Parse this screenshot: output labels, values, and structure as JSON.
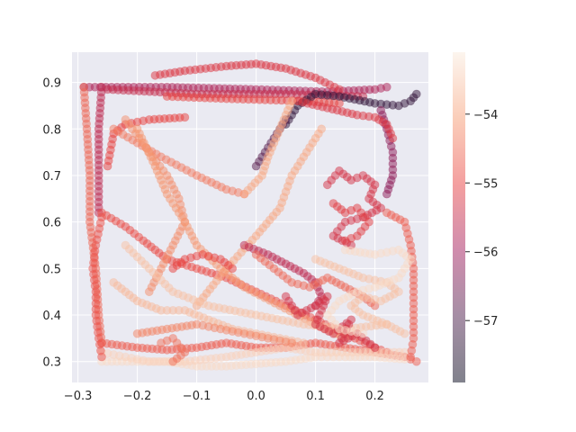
{
  "chart_data": {
    "type": "scatter",
    "title": "",
    "xlabel": "",
    "ylabel": "",
    "xlim": [
      -0.31,
      0.29
    ],
    "ylim": [
      0.255,
      0.965
    ],
    "x_ticks": [
      -0.3,
      -0.2,
      -0.1,
      0.0,
      0.1,
      0.2
    ],
    "x_tick_labels": [
      "−0.3",
      "−0.2",
      "−0.1",
      "0.0",
      "0.1",
      "0.2"
    ],
    "y_ticks": [
      0.3,
      0.4,
      0.5,
      0.6,
      0.7,
      0.8,
      0.9
    ],
    "y_tick_labels": [
      "0.3",
      "0.4",
      "0.5",
      "0.6",
      "0.7",
      "0.8",
      "0.9"
    ],
    "grid": true,
    "colorbar": {
      "range": [
        -57.9,
        -53.1
      ],
      "ticks": [
        -57,
        -56,
        -55,
        -54
      ],
      "tick_labels": [
        "−57",
        "−56",
        "−55",
        "−54"
      ],
      "colors": [
        "#03051a",
        "#4c1d4b",
        "#a11a5b",
        "#e83f3f",
        "#f69c73",
        "#faebdd"
      ]
    },
    "marker_alpha": 0.5,
    "paths": [
      {
        "color_value": -55.8,
        "points": [
          [
            -0.29,
            0.89
          ],
          [
            -0.15,
            0.89
          ],
          [
            0.0,
            0.885
          ],
          [
            0.12,
            0.88
          ],
          [
            0.2,
            0.885
          ],
          [
            0.22,
            0.89
          ]
        ]
      },
      {
        "color_value": -55.5,
        "points": [
          [
            -0.25,
            0.885
          ],
          [
            -0.1,
            0.875
          ],
          [
            0.05,
            0.875
          ],
          [
            0.18,
            0.87
          ]
        ]
      },
      {
        "color_value": -55.0,
        "points": [
          [
            -0.15,
            0.87
          ],
          [
            -0.05,
            0.865
          ],
          [
            0.08,
            0.86
          ],
          [
            0.14,
            0.855
          ]
        ]
      },
      {
        "color_value": -55.2,
        "points": [
          [
            -0.17,
            0.915
          ],
          [
            -0.12,
            0.925
          ],
          [
            -0.05,
            0.935
          ],
          [
            0.0,
            0.94
          ],
          [
            0.05,
            0.93
          ],
          [
            0.1,
            0.91
          ],
          [
            0.14,
            0.885
          ]
        ]
      },
      {
        "color_value": -57.3,
        "points": [
          [
            0.05,
            0.81
          ],
          [
            0.07,
            0.85
          ],
          [
            0.1,
            0.875
          ],
          [
            0.14,
            0.87
          ],
          [
            0.2,
            0.855
          ],
          [
            0.24,
            0.85
          ],
          [
            0.26,
            0.86
          ],
          [
            0.27,
            0.875
          ]
        ]
      },
      {
        "color_value": -56.8,
        "points": [
          [
            0.0,
            0.72
          ],
          [
            0.02,
            0.76
          ],
          [
            0.04,
            0.8
          ],
          [
            0.05,
            0.82
          ]
        ]
      },
      {
        "color_value": -56.2,
        "points": [
          [
            0.21,
            0.84
          ],
          [
            0.22,
            0.8
          ],
          [
            0.23,
            0.75
          ],
          [
            0.23,
            0.7
          ],
          [
            0.22,
            0.66
          ]
        ]
      },
      {
        "color_value": -55.2,
        "points": [
          [
            0.07,
            0.86
          ],
          [
            0.12,
            0.845
          ],
          [
            0.17,
            0.83
          ],
          [
            0.2,
            0.825
          ],
          [
            0.22,
            0.81
          ],
          [
            0.23,
            0.78
          ]
        ]
      },
      {
        "color_value": -55.6,
        "points": [
          [
            -0.26,
            0.89
          ],
          [
            -0.265,
            0.8
          ],
          [
            -0.265,
            0.7
          ],
          [
            -0.265,
            0.62
          ]
        ]
      },
      {
        "color_value": -54.9,
        "points": [
          [
            -0.26,
            0.62
          ],
          [
            -0.22,
            0.59
          ],
          [
            -0.19,
            0.56
          ],
          [
            -0.15,
            0.52
          ],
          [
            -0.1,
            0.5
          ],
          [
            -0.05,
            0.48
          ],
          [
            0.0,
            0.45
          ],
          [
            0.05,
            0.42
          ],
          [
            0.1,
            0.39
          ],
          [
            0.15,
            0.36
          ],
          [
            0.2,
            0.33
          ],
          [
            0.22,
            0.32
          ]
        ]
      },
      {
        "color_value": -55.0,
        "points": [
          [
            -0.25,
            0.72
          ],
          [
            -0.24,
            0.79
          ],
          [
            -0.22,
            0.81
          ],
          [
            -0.18,
            0.82
          ],
          [
            -0.12,
            0.825
          ]
        ]
      },
      {
        "color_value": -54.4,
        "points": [
          [
            -0.24,
            0.8
          ],
          [
            -0.2,
            0.77
          ],
          [
            -0.16,
            0.74
          ],
          [
            -0.1,
            0.7
          ],
          [
            -0.05,
            0.67
          ],
          [
            -0.02,
            0.66
          ]
        ]
      },
      {
        "color_value": -53.9,
        "points": [
          [
            -0.02,
            0.66
          ],
          [
            0.01,
            0.7
          ],
          [
            0.02,
            0.74
          ],
          [
            0.03,
            0.77
          ],
          [
            0.04,
            0.8
          ],
          [
            0.05,
            0.83
          ],
          [
            0.06,
            0.86
          ]
        ]
      },
      {
        "color_value": -54.2,
        "points": [
          [
            -0.22,
            0.82
          ],
          [
            -0.18,
            0.75
          ],
          [
            -0.15,
            0.7
          ],
          [
            -0.13,
            0.65
          ],
          [
            -0.12,
            0.6
          ],
          [
            -0.14,
            0.55
          ],
          [
            -0.16,
            0.5
          ],
          [
            -0.18,
            0.45
          ]
        ]
      },
      {
        "color_value": -53.9,
        "points": [
          [
            -0.1,
            0.42
          ],
          [
            -0.05,
            0.5
          ],
          [
            0.0,
            0.57
          ],
          [
            0.04,
            0.63
          ],
          [
            0.06,
            0.7
          ],
          [
            0.09,
            0.76
          ],
          [
            0.11,
            0.8
          ]
        ]
      },
      {
        "color_value": -54.1,
        "points": [
          [
            -0.2,
            0.8
          ],
          [
            -0.17,
            0.72
          ],
          [
            -0.15,
            0.66
          ],
          [
            -0.12,
            0.6
          ],
          [
            -0.1,
            0.55
          ],
          [
            -0.06,
            0.5
          ],
          [
            -0.02,
            0.46
          ],
          [
            0.04,
            0.42
          ],
          [
            0.1,
            0.38
          ],
          [
            0.15,
            0.35
          ]
        ]
      },
      {
        "color_value": -53.6,
        "points": [
          [
            -0.22,
            0.55
          ],
          [
            -0.18,
            0.5
          ],
          [
            -0.14,
            0.45
          ],
          [
            -0.08,
            0.42
          ],
          [
            0.0,
            0.4
          ],
          [
            0.08,
            0.38
          ],
          [
            0.15,
            0.37
          ],
          [
            0.22,
            0.38
          ]
        ]
      },
      {
        "color_value": -54.6,
        "points": [
          [
            -0.29,
            0.89
          ],
          [
            -0.285,
            0.8
          ],
          [
            -0.28,
            0.7
          ],
          [
            -0.28,
            0.6
          ],
          [
            -0.27,
            0.5
          ],
          [
            -0.265,
            0.4
          ],
          [
            -0.26,
            0.34
          ]
        ]
      },
      {
        "color_value": -54.7,
        "points": [
          [
            -0.26,
            0.34
          ],
          [
            -0.2,
            0.33
          ],
          [
            -0.15,
            0.325
          ],
          [
            -0.1,
            0.33
          ],
          [
            -0.05,
            0.34
          ],
          [
            0.0,
            0.33
          ],
          [
            0.05,
            0.33
          ],
          [
            0.1,
            0.34
          ],
          [
            0.15,
            0.33
          ],
          [
            0.2,
            0.32
          ],
          [
            0.25,
            0.31
          ],
          [
            0.27,
            0.3
          ]
        ]
      },
      {
        "color_value": -53.3,
        "points": [
          [
            -0.26,
            0.3
          ],
          [
            -0.2,
            0.3
          ],
          [
            -0.15,
            0.3
          ],
          [
            -0.1,
            0.29
          ],
          [
            -0.05,
            0.29
          ],
          [
            0.0,
            0.295
          ],
          [
            0.05,
            0.3
          ],
          [
            0.1,
            0.31
          ],
          [
            0.15,
            0.31
          ],
          [
            0.2,
            0.31
          ],
          [
            0.25,
            0.305
          ]
        ]
      },
      {
        "color_value": -53.4,
        "points": [
          [
            -0.26,
            0.32
          ],
          [
            -0.22,
            0.31
          ],
          [
            -0.18,
            0.3
          ],
          [
            -0.12,
            0.3
          ],
          [
            -0.05,
            0.31
          ],
          [
            0.0,
            0.32
          ],
          [
            0.05,
            0.33
          ],
          [
            0.1,
            0.32
          ],
          [
            0.18,
            0.32
          ],
          [
            0.25,
            0.32
          ]
        ]
      },
      {
        "color_value": -54.8,
        "points": [
          [
            -0.26,
            0.61
          ],
          [
            -0.27,
            0.55
          ],
          [
            -0.275,
            0.5
          ],
          [
            -0.27,
            0.45
          ],
          [
            -0.27,
            0.4
          ],
          [
            -0.265,
            0.35
          ],
          [
            -0.26,
            0.31
          ]
        ]
      },
      {
        "color_value": -54.7,
        "points": [
          [
            0.22,
            0.62
          ],
          [
            0.25,
            0.6
          ],
          [
            0.26,
            0.55
          ],
          [
            0.265,
            0.5
          ],
          [
            0.265,
            0.45
          ],
          [
            0.265,
            0.4
          ],
          [
            0.265,
            0.35
          ],
          [
            0.26,
            0.31
          ]
        ]
      },
      {
        "color_value": -55.3,
        "points": [
          [
            0.12,
            0.68
          ],
          [
            0.14,
            0.71
          ],
          [
            0.16,
            0.69
          ],
          [
            0.18,
            0.7
          ],
          [
            0.2,
            0.68
          ],
          [
            0.19,
            0.65
          ],
          [
            0.21,
            0.63
          ],
          [
            0.18,
            0.61
          ],
          [
            0.15,
            0.6
          ],
          [
            0.13,
            0.57
          ],
          [
            0.16,
            0.55
          ]
        ]
      },
      {
        "color_value": -55.1,
        "points": [
          [
            0.13,
            0.64
          ],
          [
            0.15,
            0.62
          ],
          [
            0.17,
            0.63
          ],
          [
            0.19,
            0.6
          ],
          [
            0.17,
            0.57
          ],
          [
            0.15,
            0.56
          ]
        ]
      },
      {
        "color_value": -55.6,
        "points": [
          [
            -0.02,
            0.55
          ],
          [
            0.02,
            0.53
          ],
          [
            0.05,
            0.51
          ],
          [
            0.08,
            0.49
          ],
          [
            0.1,
            0.47
          ],
          [
            0.11,
            0.44
          ],
          [
            0.1,
            0.42
          ]
        ]
      },
      {
        "color_value": -55.3,
        "points": [
          [
            0.05,
            0.44
          ],
          [
            0.07,
            0.4
          ],
          [
            0.1,
            0.42
          ],
          [
            0.12,
            0.44
          ],
          [
            0.1,
            0.38
          ],
          [
            0.13,
            0.36
          ],
          [
            0.16,
            0.39
          ],
          [
            0.14,
            0.34
          ],
          [
            0.17,
            0.36
          ],
          [
            0.2,
            0.33
          ]
        ]
      },
      {
        "color_value": -54.6,
        "points": [
          [
            0.0,
            0.53
          ],
          [
            0.03,
            0.5
          ],
          [
            0.06,
            0.47
          ],
          [
            0.09,
            0.46
          ],
          [
            0.12,
            0.48
          ],
          [
            0.15,
            0.46
          ],
          [
            0.18,
            0.44
          ],
          [
            0.2,
            0.42
          ]
        ]
      },
      {
        "color_value": -53.6,
        "points": [
          [
            0.1,
            0.52
          ],
          [
            0.14,
            0.5
          ],
          [
            0.18,
            0.48
          ],
          [
            0.22,
            0.47
          ],
          [
            0.24,
            0.45
          ],
          [
            0.21,
            0.43
          ],
          [
            0.18,
            0.44
          ],
          [
            0.16,
            0.42
          ],
          [
            0.18,
            0.4
          ],
          [
            0.22,
            0.38
          ],
          [
            0.25,
            0.36
          ]
        ]
      },
      {
        "color_value": -53.3,
        "points": [
          [
            0.15,
            0.54
          ],
          [
            0.2,
            0.53
          ],
          [
            0.24,
            0.54
          ],
          [
            0.26,
            0.52
          ],
          [
            0.24,
            0.48
          ],
          [
            0.2,
            0.46
          ],
          [
            0.17,
            0.45
          ],
          [
            0.14,
            0.43
          ],
          [
            0.12,
            0.4
          ],
          [
            0.14,
            0.37
          ],
          [
            0.18,
            0.36
          ]
        ]
      },
      {
        "color_value": -53.7,
        "points": [
          [
            -0.24,
            0.47
          ],
          [
            -0.2,
            0.43
          ],
          [
            -0.16,
            0.41
          ],
          [
            -0.12,
            0.41
          ],
          [
            -0.08,
            0.39
          ],
          [
            -0.04,
            0.37
          ],
          [
            0.0,
            0.36
          ],
          [
            0.04,
            0.35
          ],
          [
            0.08,
            0.34
          ]
        ]
      },
      {
        "color_value": -54.3,
        "points": [
          [
            -0.2,
            0.36
          ],
          [
            -0.15,
            0.37
          ],
          [
            -0.1,
            0.38
          ],
          [
            -0.06,
            0.37
          ],
          [
            -0.02,
            0.36
          ],
          [
            0.02,
            0.35
          ],
          [
            0.06,
            0.34
          ]
        ]
      },
      {
        "color_value": -54.5,
        "points": [
          [
            -0.14,
            0.3
          ],
          [
            -0.12,
            0.32
          ],
          [
            -0.14,
            0.35
          ],
          [
            -0.16,
            0.34
          ]
        ]
      },
      {
        "color_value": -55.0,
        "points": [
          [
            -0.14,
            0.5
          ],
          [
            -0.12,
            0.52
          ],
          [
            -0.09,
            0.53
          ],
          [
            -0.06,
            0.52
          ],
          [
            -0.04,
            0.5
          ]
        ]
      }
    ]
  }
}
